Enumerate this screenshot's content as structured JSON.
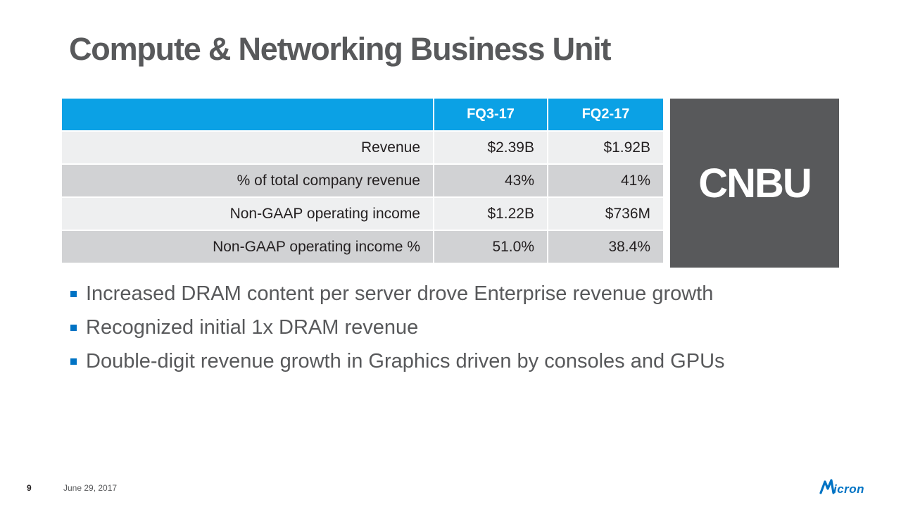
{
  "slide": {
    "title": "Compute & Networking Business Unit",
    "page_number": "9",
    "date": "June 29, 2017"
  },
  "table": {
    "headers": [
      "",
      "FQ3-17",
      "FQ2-17"
    ],
    "rows": [
      {
        "label": "Revenue",
        "fq3": "$2.39B",
        "fq2": "$1.92B"
      },
      {
        "label": "% of total company revenue",
        "fq3": "43%",
        "fq2": "41%"
      },
      {
        "label": "Non-GAAP operating income",
        "fq3": "$1.22B",
        "fq2": "$736M"
      },
      {
        "label": "Non-GAAP operating income %",
        "fq3": "51.0%",
        "fq2": "38.4%"
      }
    ]
  },
  "badge": {
    "text": "CNBU"
  },
  "bullets": [
    "Increased DRAM content per server drove Enterprise revenue growth",
    "Recognized initial 1x DRAM revenue",
    "Double-digit revenue growth in Graphics driven by consoles and GPUs"
  ],
  "logo": {
    "text": "Micron"
  },
  "colors": {
    "header_blue": "#0ba1e5",
    "title_gray": "#58595b",
    "badge_gray": "#58595b",
    "bullet_blue": "#0073c4",
    "logo_blue": "#0073c4",
    "row_light": "#eeeff0",
    "row_dark": "#d1d2d4"
  }
}
